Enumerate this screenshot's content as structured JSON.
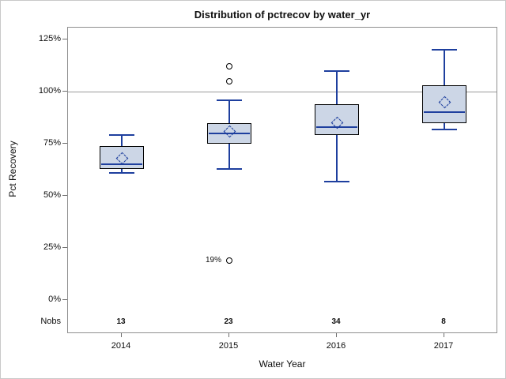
{
  "title": "Distribution of pctrecov by water_yr",
  "y_axis": {
    "label": "Pct Recovery"
  },
  "x_axis": {
    "label": "Water Year"
  },
  "nobs_row": {
    "label": "Nobs"
  },
  "chart_data": {
    "type": "boxplot",
    "title": "Distribution of pctrecov by water_yr",
    "xlabel": "Water Year",
    "ylabel": "Pct Recovery",
    "ylim": [
      0,
      125
    ],
    "y_tick_step": 25,
    "y_ticks": [
      {
        "value": 125,
        "label": "125%"
      },
      {
        "value": 100,
        "label": "100%"
      },
      {
        "value": 75,
        "label": "75%"
      },
      {
        "value": 50,
        "label": "50%"
      },
      {
        "value": 25,
        "label": "25%"
      },
      {
        "value": 0,
        "label": "0%"
      }
    ],
    "reference_line_y": 100,
    "legend": "none",
    "categories": [
      "2014",
      "2015",
      "2016",
      "2017"
    ],
    "nobs": [
      13,
      23,
      34,
      8
    ],
    "series": [
      {
        "category": "2014",
        "whisker_low": 61,
        "q1": 63,
        "median": 65,
        "q3": 74,
        "whisker_high": 79,
        "mean": 68,
        "outliers": []
      },
      {
        "category": "2015",
        "whisker_low": 63,
        "q1": 75,
        "median": 80,
        "q3": 85,
        "whisker_high": 96,
        "mean": 81,
        "outliers": [
          {
            "value": 112
          },
          {
            "value": 105
          },
          {
            "value": 19,
            "label": "19%"
          }
        ]
      },
      {
        "category": "2016",
        "whisker_low": 57,
        "q1": 79,
        "median": 83,
        "q3": 94,
        "whisker_high": 110,
        "mean": 85,
        "outliers": []
      },
      {
        "category": "2017",
        "whisker_low": 82,
        "q1": 85,
        "median": 90,
        "q3": 103,
        "whisker_high": 120,
        "mean": 95,
        "outliers": []
      }
    ]
  },
  "colors": {
    "box_fill": "#ccd6e6",
    "box_border": "#000000",
    "whisker": "#1e3f9e",
    "wall_border": "#8f8f8f",
    "reference_line": "#9a9a9a",
    "figure_border": "#c9c9c9",
    "text": "#0f0f0f"
  }
}
